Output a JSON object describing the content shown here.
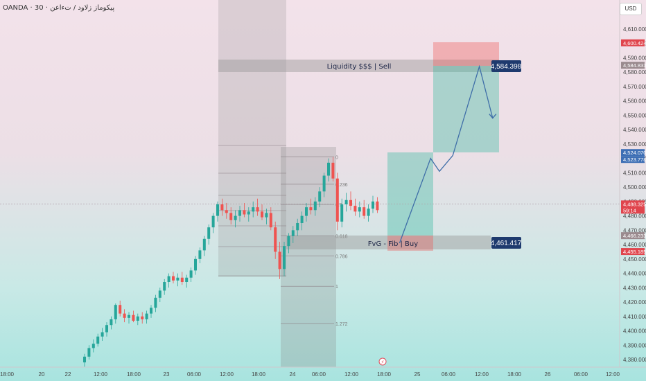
{
  "header": {
    "symbol_title": "OANDA · 30 · پیکوماز زلاود / ت‌ءاعن",
    "currency": "USD"
  },
  "price_axis": {
    "ticks": [
      4610,
      4600,
      4590,
      4580,
      4570,
      4560,
      4550,
      4540,
      4530,
      4520,
      4510,
      4500,
      4490,
      4480,
      4470,
      4460,
      4450,
      4440,
      4430,
      4420,
      4410,
      4400,
      4390,
      4380
    ],
    "tick_labels": [
      "4,610.000",
      "4,600.000",
      "4,590.000",
      "4,580.000",
      "4,570.000",
      "4,560.000",
      "4,550.000",
      "4,540.000",
      "4,530.000",
      "4,520.000",
      "4,510.000",
      "4,500.000",
      "4,490.000",
      "4,480.000",
      "4,470.000",
      "4,460.000",
      "4,450.000",
      "4,440.000",
      "4,430.000",
      "4,420.000",
      "4,410.000",
      "4,400.000",
      "4,390.000",
      "4,380.000"
    ],
    "badges": [
      {
        "value": 4600.424,
        "label": "4,600.424",
        "color": "#e0454d"
      },
      {
        "value": 4584.833,
        "label": "4,584.833",
        "color": "#9a8a8e"
      },
      {
        "value": 4524.07,
        "label": "4,524.070",
        "color": "#3e6fb5"
      },
      {
        "value": 4523.778,
        "label": "4,523.778",
        "color": "#3e6fb5"
      },
      {
        "value": 4488.325,
        "label": "4,488.325",
        "color": "#e0454d",
        "sub": "59:14"
      },
      {
        "value": 4466.233,
        "label": "4,466.233",
        "color": "#9a8a8e"
      },
      {
        "value": 4455.185,
        "label": "4,455.185",
        "color": "#e0454d"
      }
    ]
  },
  "time_axis": {
    "labels": [
      "18:00",
      "20",
      "22",
      "12:00",
      "18:00",
      "23",
      "06:00",
      "12:00",
      "18:00",
      "24",
      "06:00",
      "12:00",
      "18:00",
      "25",
      "06:00",
      "12:00",
      "18:00",
      "26",
      "06:00",
      "12:00"
    ]
  },
  "annotations": {
    "liquidity_label": "Liquidity $$$ | Sell",
    "liquidity_price": "4,584.398",
    "fvg_label": "FvG - Fib | Buy",
    "fvg_price": "4,461.417",
    "fib_levels": [
      {
        "label": "0",
        "value": 4521
      },
      {
        "label": "0.236",
        "value": 4502
      },
      {
        "label": "0.5",
        "value": 4488
      },
      {
        "label": "0.618",
        "value": 4466
      },
      {
        "label": "0.786",
        "value": 4452
      },
      {
        "label": "1",
        "value": 4431
      },
      {
        "label": "1.272",
        "value": 4405
      }
    ]
  },
  "colors": {
    "bull": "#26a69a",
    "bear": "#ef5350",
    "path": "#3f6ea8",
    "label_bg": "#1e3a6e"
  },
  "chart_data": {
    "type": "candlestick",
    "title": "OANDA · 30",
    "ylim": [
      4375,
      4625
    ],
    "candles": [
      [
        4378,
        4384,
        4375,
        4382
      ],
      [
        4382,
        4390,
        4380,
        4388
      ],
      [
        4388,
        4394,
        4385,
        4391
      ],
      [
        4391,
        4398,
        4389,
        4396
      ],
      [
        4396,
        4402,
        4393,
        4399
      ],
      [
        4399,
        4406,
        4396,
        4404
      ],
      [
        4404,
        4410,
        4401,
        4408
      ],
      [
        4408,
        4419,
        4405,
        4418
      ],
      [
        4418,
        4421,
        4410,
        4412
      ],
      [
        4412,
        4415,
        4406,
        4409
      ],
      [
        4409,
        4413,
        4405,
        4411
      ],
      [
        4411,
        4414,
        4406,
        4407
      ],
      [
        4407,
        4412,
        4404,
        4410
      ],
      [
        4410,
        4413,
        4405,
        4408
      ],
      [
        4408,
        4414,
        4405,
        4412
      ],
      [
        4412,
        4418,
        4409,
        4416
      ],
      [
        4416,
        4425,
        4413,
        4423
      ],
      [
        4423,
        4430,
        4420,
        4428
      ],
      [
        4428,
        4436,
        4425,
        4434
      ],
      [
        4434,
        4440,
        4430,
        4438
      ],
      [
        4438,
        4441,
        4433,
        4435
      ],
      [
        4435,
        4440,
        4431,
        4437
      ],
      [
        4437,
        4441,
        4432,
        4434
      ],
      [
        4434,
        4439,
        4430,
        4437
      ],
      [
        4437,
        4444,
        4434,
        4442
      ],
      [
        4442,
        4452,
        4439,
        4450
      ],
      [
        4450,
        4458,
        4447,
        4456
      ],
      [
        4456,
        4466,
        4452,
        4464
      ],
      [
        4464,
        4474,
        4460,
        4472
      ],
      [
        4472,
        4482,
        4468,
        4480
      ],
      [
        4480,
        4490,
        4476,
        4488
      ],
      [
        4488,
        4492,
        4480,
        4484
      ],
      [
        4484,
        4489,
        4478,
        4482
      ],
      [
        4482,
        4486,
        4474,
        4477
      ],
      [
        4477,
        4484,
        4472,
        4480
      ],
      [
        4480,
        4487,
        4476,
        4484
      ],
      [
        4484,
        4489,
        4479,
        4481
      ],
      [
        4481,
        4486,
        4476,
        4483
      ],
      [
        4483,
        4490,
        4479,
        4486
      ],
      [
        4486,
        4492,
        4480,
        4483
      ],
      [
        4483,
        4488,
        4477,
        4479
      ],
      [
        4479,
        4485,
        4474,
        4482
      ],
      [
        4482,
        4486,
        4470,
        4472
      ],
      [
        4472,
        4476,
        4450,
        4455
      ],
      [
        4455,
        4462,
        4436,
        4443
      ],
      [
        4443,
        4462,
        4438,
        4459
      ],
      [
        4459,
        4468,
        4454,
        4466
      ],
      [
        4466,
        4473,
        4461,
        4470
      ],
      [
        4470,
        4478,
        4466,
        4475
      ],
      [
        4475,
        4483,
        4470,
        4480
      ],
      [
        4480,
        4489,
        4476,
        4486
      ],
      [
        4486,
        4492,
        4481,
        4484
      ],
      [
        4484,
        4493,
        4480,
        4490
      ],
      [
        4490,
        4500,
        4486,
        4497
      ],
      [
        4497,
        4510,
        4493,
        4508
      ],
      [
        4508,
        4520,
        4504,
        4517
      ],
      [
        4517,
        4521,
        4504,
        4506
      ],
      [
        4506,
        4510,
        4470,
        4476
      ],
      [
        4476,
        4492,
        4472,
        4488
      ],
      [
        4488,
        4496,
        4483,
        4491
      ],
      [
        4491,
        4497,
        4484,
        4487
      ],
      [
        4487,
        4492,
        4480,
        4483
      ],
      [
        4483,
        4490,
        4479,
        4486
      ],
      [
        4486,
        4491,
        4478,
        4480
      ],
      [
        4480,
        4488,
        4476,
        4485
      ],
      [
        4485,
        4494,
        4482,
        4490
      ],
      [
        4490,
        4493,
        4482,
        4484
      ]
    ],
    "projection": [
      {
        "t": 71,
        "price": 4461
      },
      {
        "t": 78,
        "price": 4520
      },
      {
        "t": 80,
        "price": 4511
      },
      {
        "t": 83,
        "price": 4522
      },
      {
        "t": 89,
        "price": 4584
      },
      {
        "t": 92,
        "price": 4548
      }
    ]
  }
}
